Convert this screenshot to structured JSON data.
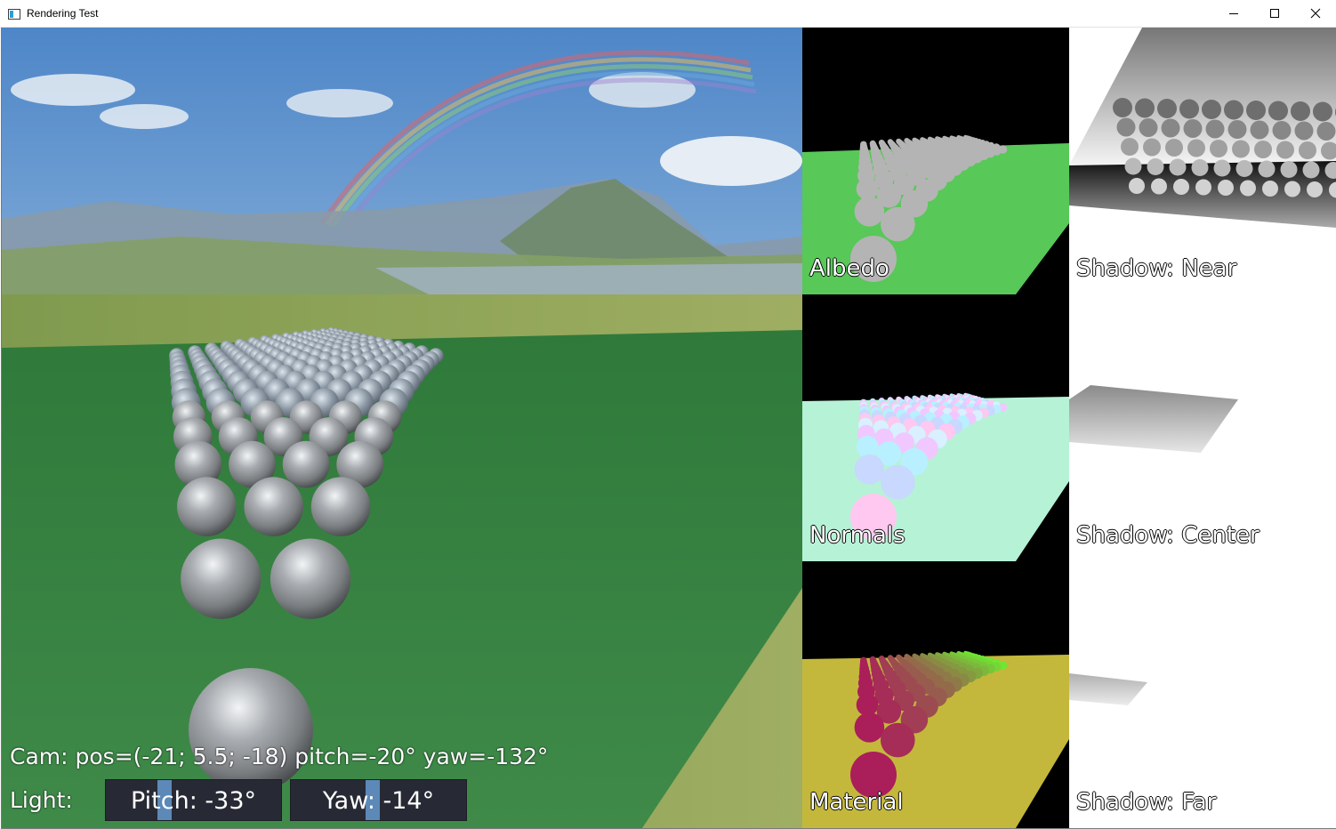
{
  "window": {
    "title": "Rendering Test",
    "controls": [
      "minimize",
      "maximize",
      "close"
    ]
  },
  "overlay": {
    "camera_text": "Cam: pos=(-21; 5.5; -18) pitch=-20° yaw=-132°",
    "light_label": "Light:",
    "pitch_slider": {
      "label": "Pitch: -33°",
      "value_deg": -33
    },
    "yaw_slider": {
      "label": "Yaw: -14°",
      "value_deg": -14
    }
  },
  "panels": {
    "albedo": "Albedo",
    "shadow_near": "Shadow: Near",
    "normals": "Normals",
    "shadow_center": "Shadow: Center",
    "material": "Material",
    "shadow_far": "Shadow: Far"
  },
  "colors": {
    "grass": "#3e8a46",
    "albedo_ground": "#58c858",
    "albedo_sphere": "#b4b4b4",
    "normals_ground": "#b6f2d6",
    "material_ground": "#c4b83c",
    "slider_bg": "#272a35",
    "slider_thumb": "#5c89b8"
  }
}
